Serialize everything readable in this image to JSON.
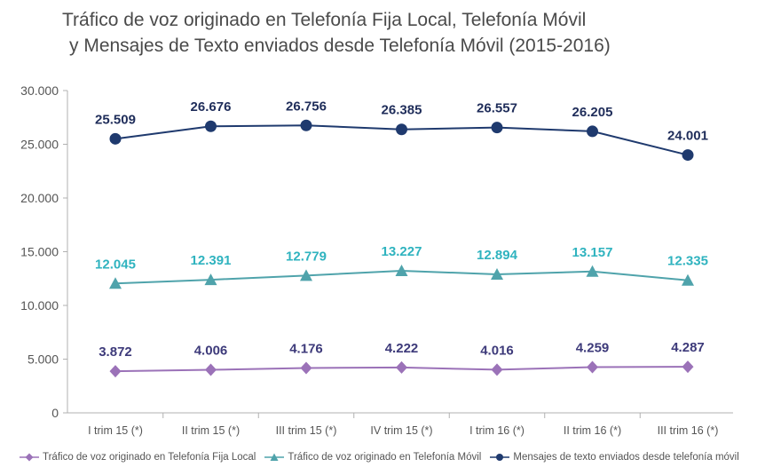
{
  "chart_data": {
    "type": "line",
    "title_line1": "Tráfico de voz originado en Telefonía Fija Local, Telefonía Móvil",
    "title_line2": "y Mensajes de Texto enviados desde Telefonía Móvil (2015-2016)",
    "categories": [
      "I trim 15 (*)",
      "II trim 15 (*)",
      "III trim 15 (*)",
      "IV trim 15 (*)",
      "I trim 16 (*)",
      "II trim 16 (*)",
      "III trim 16 (*)"
    ],
    "yticks": [
      "0",
      "5.000",
      "10.000",
      "15.000",
      "20.000",
      "25.000",
      "30.000"
    ],
    "ylim": [
      0,
      30000
    ],
    "grid": false,
    "legend_position": "bottom",
    "series": [
      {
        "name": "Tráfico de voz originado en Telefonía Fija Local",
        "values": [
          3872,
          4006,
          4176,
          4222,
          4016,
          4259,
          4287
        ],
        "labels": [
          "3.872",
          "4.006",
          "4.176",
          "4.222",
          "4.016",
          "4.259",
          "4.287"
        ],
        "color": "#9b72b8",
        "label_color": "#3d3a7a",
        "marker": "diamond"
      },
      {
        "name": "Tráfico de voz originado en Telefonía Móvil",
        "values": [
          12045,
          12391,
          12779,
          13227,
          12894,
          13157,
          12335
        ],
        "labels": [
          "12.045",
          "12.391",
          "12.779",
          "13.227",
          "12.894",
          "13.157",
          "12.335"
        ],
        "color": "#4fa3ab",
        "label_color": "#2fb3bf",
        "marker": "triangle"
      },
      {
        "name": "Mensajes de texto enviados desde telefonía móvil",
        "values": [
          25509,
          26676,
          26756,
          26385,
          26557,
          26205,
          24001
        ],
        "labels": [
          "25.509",
          "26.676",
          "26.756",
          "26.385",
          "26.557",
          "26.205",
          "24.001"
        ],
        "color": "#1f3a6e",
        "label_color": "#1f2d5a",
        "marker": "circle"
      }
    ]
  }
}
